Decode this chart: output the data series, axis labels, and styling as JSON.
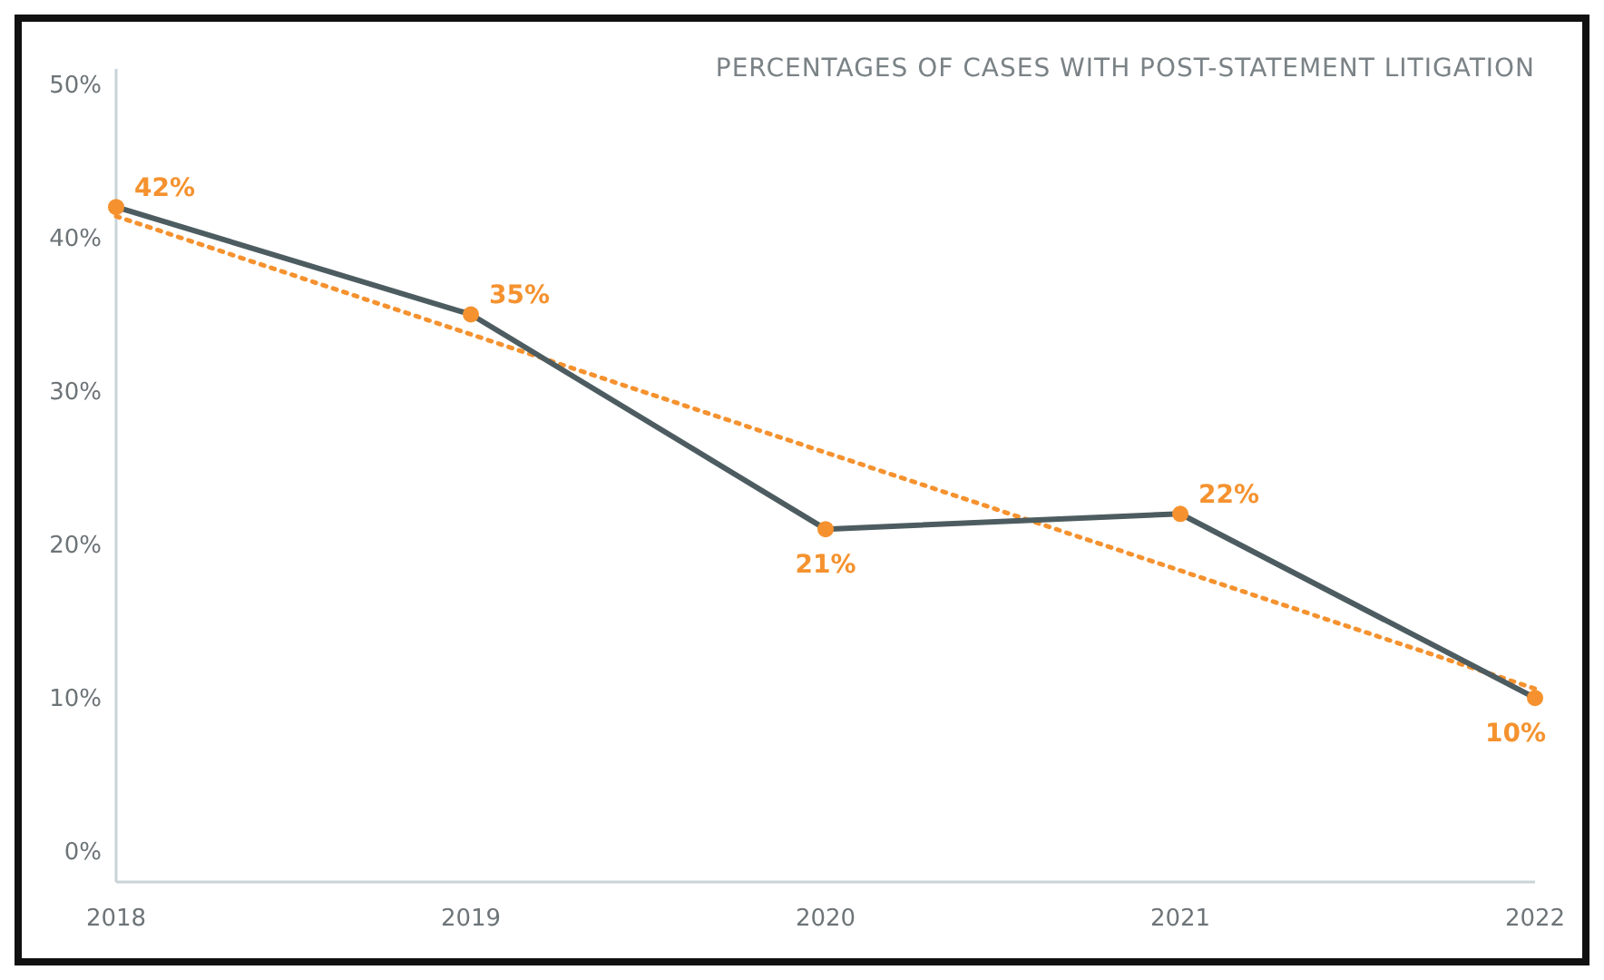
{
  "chart_data": {
    "type": "line",
    "title": "PERCENTAGES OF CASES WITH POST-STATEMENT LITIGATION",
    "x": [
      2018,
      2019,
      2020,
      2021,
      2022
    ],
    "xlim": [
      2018,
      2022
    ],
    "xticks": [
      2018,
      2019,
      2020,
      2021,
      2022
    ],
    "ylim": [
      -2,
      51
    ],
    "yticks": [
      {
        "value": 0,
        "label": "0%"
      },
      {
        "value": 10,
        "label": "10%"
      },
      {
        "value": 20,
        "label": "20%"
      },
      {
        "value": 30,
        "label": "30%"
      },
      {
        "value": 40,
        "label": "40%"
      },
      {
        "value": 50,
        "label": "50%"
      }
    ],
    "grid": false,
    "marker": "circle",
    "line_style": "solid",
    "series": [
      {
        "color": "#4d5c60",
        "values": [
          42,
          35,
          21,
          22,
          10
        ],
        "value_labels": [
          "42%",
          "35%",
          "21%",
          "22%",
          "10%"
        ]
      },
      {
        "type": "line",
        "color": "#f5922f",
        "x": [
          2018,
          2022
        ],
        "values": [
          41.4,
          10.6
        ],
        "line_style": "dotted",
        "marker": "none"
      }
    ]
  }
}
